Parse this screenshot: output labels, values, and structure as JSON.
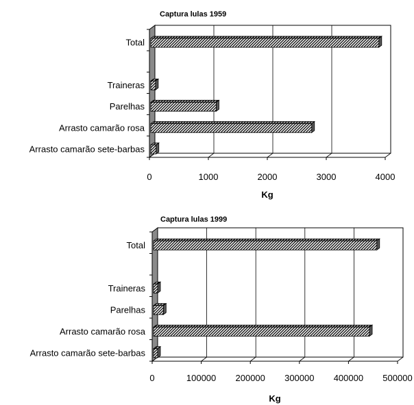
{
  "chart_data": [
    {
      "type": "bar",
      "orientation": "horizontal",
      "title": "Captura lulas 1959",
      "categories": [
        "Total",
        "",
        "Traineras",
        "Parelhas",
        "Arrasto camarão rosa",
        "Arrasto camarão sete-barbas"
      ],
      "values": [
        3870,
        null,
        80,
        1110,
        2730,
        90
      ],
      "xlabel": "Kg",
      "ylabel": "",
      "xlim": [
        0,
        4000
      ],
      "xticks": [
        "0",
        "1000",
        "2000",
        "3000",
        "4000"
      ],
      "grid": true,
      "style": "3d-hatched"
    },
    {
      "type": "bar",
      "orientation": "horizontal",
      "title": "Captura lulas 1999",
      "categories": [
        "Total",
        "",
        "Traineras",
        "Parelhas",
        "Arrasto camarão rosa",
        "Arrasto camarão sete-barbas"
      ],
      "values": [
        455000,
        null,
        5000,
        20000,
        440000,
        5000
      ],
      "xlabel": "Kg",
      "ylabel": "",
      "xlim": [
        0,
        500000
      ],
      "xticks": [
        "0",
        "100000",
        "200000",
        "300000",
        "400000",
        "500000"
      ],
      "grid": true,
      "style": "3d-hatched"
    }
  ]
}
